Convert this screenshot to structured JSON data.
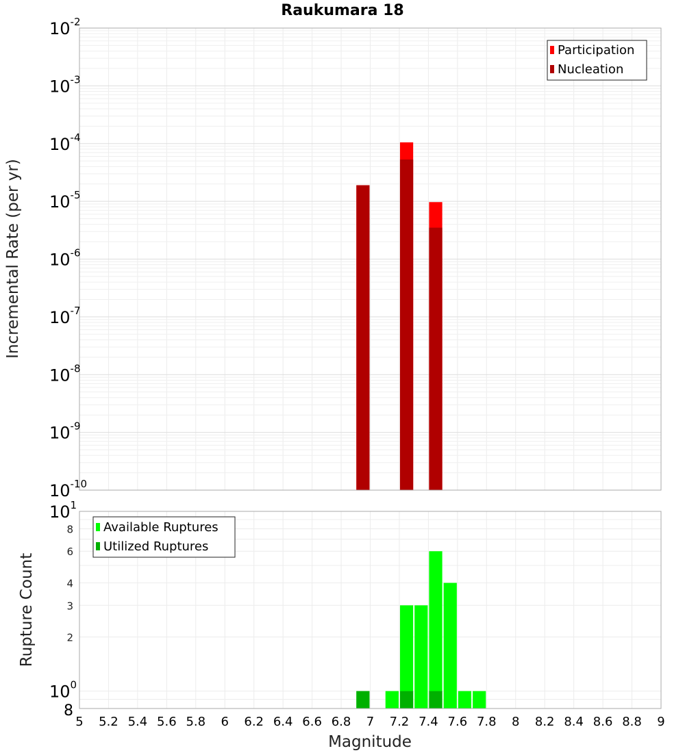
{
  "chart_data": [
    {
      "type": "bar",
      "title": "Raukumara 18",
      "xlabel": "",
      "ylabel": "Incremental Rate (per yr)",
      "yscale": "log",
      "ylim": [
        1e-10,
        0.01
      ],
      "xlim": [
        5,
        9
      ],
      "y_ticks": [
        {
          "base": "10",
          "exp": "-10",
          "value": 1e-10
        },
        {
          "base": "10",
          "exp": "-9",
          "value": 1e-09
        },
        {
          "base": "10",
          "exp": "-8",
          "value": 1e-08
        },
        {
          "base": "10",
          "exp": "-7",
          "value": 1e-07
        },
        {
          "base": "10",
          "exp": "-6",
          "value": 1e-06
        },
        {
          "base": "10",
          "exp": "-5",
          "value": 1e-05
        },
        {
          "base": "10",
          "exp": "-4",
          "value": 0.0001
        },
        {
          "base": "10",
          "exp": "-3",
          "value": 0.001
        },
        {
          "base": "10",
          "exp": "-2",
          "value": 0.01
        }
      ],
      "grid": true,
      "legend_position": "top-right",
      "series": [
        {
          "name": "Participation",
          "color": "#ff0000",
          "x": [
            6.95,
            7.25,
            7.45
          ],
          "values": [
            1.9e-05,
            0.000105,
            9.7e-06
          ]
        },
        {
          "name": "Nucleation",
          "color": "#b00000",
          "x": [
            6.95,
            7.25,
            7.45
          ],
          "values": [
            1.9e-05,
            5.3e-05,
            3.5e-06
          ]
        }
      ]
    },
    {
      "type": "bar",
      "title": "",
      "xlabel": "Magnitude",
      "ylabel": "Rupture Count",
      "yscale": "log",
      "ylim": [
        0.8,
        10
      ],
      "xlim": [
        5,
        9
      ],
      "x_ticks": [
        "5",
        "5.2",
        "5.4",
        "5.6",
        "5.8",
        "6",
        "6.2",
        "6.4",
        "6.6",
        "6.8",
        "7",
        "7.2",
        "7.4",
        "7.6",
        "7.8",
        "8",
        "8.2",
        "8.4",
        "8.6",
        "8.8",
        "9"
      ],
      "y_major_ticks": [
        {
          "base": "10",
          "exp": "0",
          "value": 1
        },
        {
          "base": "10",
          "exp": "1",
          "value": 10
        }
      ],
      "y_minor_ticks": [
        {
          "label": "8",
          "value": 0.8
        },
        {
          "label": "2",
          "value": 2
        },
        {
          "label": "3",
          "value": 3
        },
        {
          "label": "4",
          "value": 4
        },
        {
          "label": "6",
          "value": 6
        },
        {
          "label": "8",
          "value": 8
        }
      ],
      "grid": true,
      "legend_position": "top-left",
      "series": [
        {
          "name": "Available Ruptures",
          "color": "#00ff00",
          "x": [
            6.95,
            7.15,
            7.25,
            7.35,
            7.45,
            7.55,
            7.65,
            7.75
          ],
          "values": [
            1,
            1,
            3,
            3,
            6,
            4,
            1,
            1
          ]
        },
        {
          "name": "Utilized Ruptures",
          "color": "#00b000",
          "x": [
            6.95,
            7.25,
            7.45
          ],
          "values": [
            1,
            1,
            1
          ]
        }
      ]
    }
  ]
}
